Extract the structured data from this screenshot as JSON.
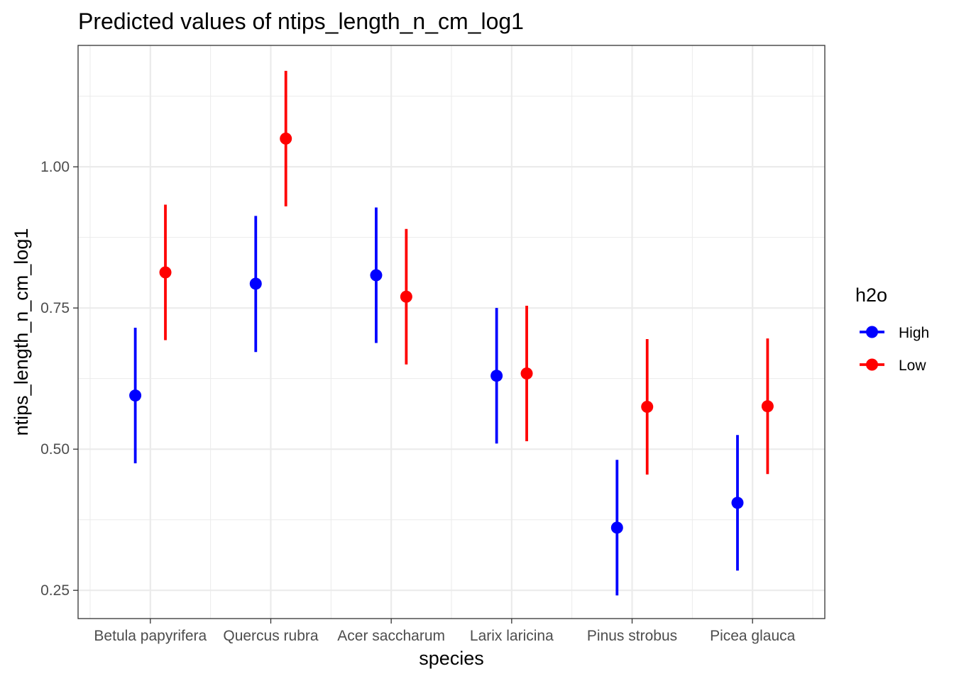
{
  "chart_data": {
    "type": "scatter",
    "subtype": "point-range (dodged)",
    "title": "Predicted values of ntips_length_n_cm_log1",
    "xlabel": "species",
    "ylabel": "ntips_length_n_cm_log1",
    "categories": [
      "Betula papyrifera",
      "Quercus rubra",
      "Acer saccharum",
      "Larix laricina",
      "Pinus strobus",
      "Picea glauca"
    ],
    "ylim": [
      0.2,
      1.215
    ],
    "yticks": [
      0.25,
      0.5,
      0.75,
      1.0
    ],
    "ytick_labels": [
      "0.25",
      "0.50",
      "0.75",
      "1.00"
    ],
    "grid": true,
    "legend": {
      "title": "h2o",
      "position": "right"
    },
    "series": [
      {
        "name": "High",
        "color": "#0000ff",
        "values": [
          0.595,
          0.793,
          0.808,
          0.63,
          0.361,
          0.405
        ],
        "lower": [
          0.475,
          0.672,
          0.688,
          0.51,
          0.241,
          0.285
        ],
        "upper": [
          0.715,
          0.913,
          0.928,
          0.75,
          0.481,
          0.525
        ]
      },
      {
        "name": "Low",
        "color": "#ff0000",
        "values": [
          0.813,
          1.05,
          0.77,
          0.634,
          0.575,
          0.576
        ],
        "lower": [
          0.693,
          0.93,
          0.65,
          0.514,
          0.455,
          0.456
        ],
        "upper": [
          0.933,
          1.17,
          0.89,
          0.754,
          0.695,
          0.696
        ]
      }
    ]
  }
}
